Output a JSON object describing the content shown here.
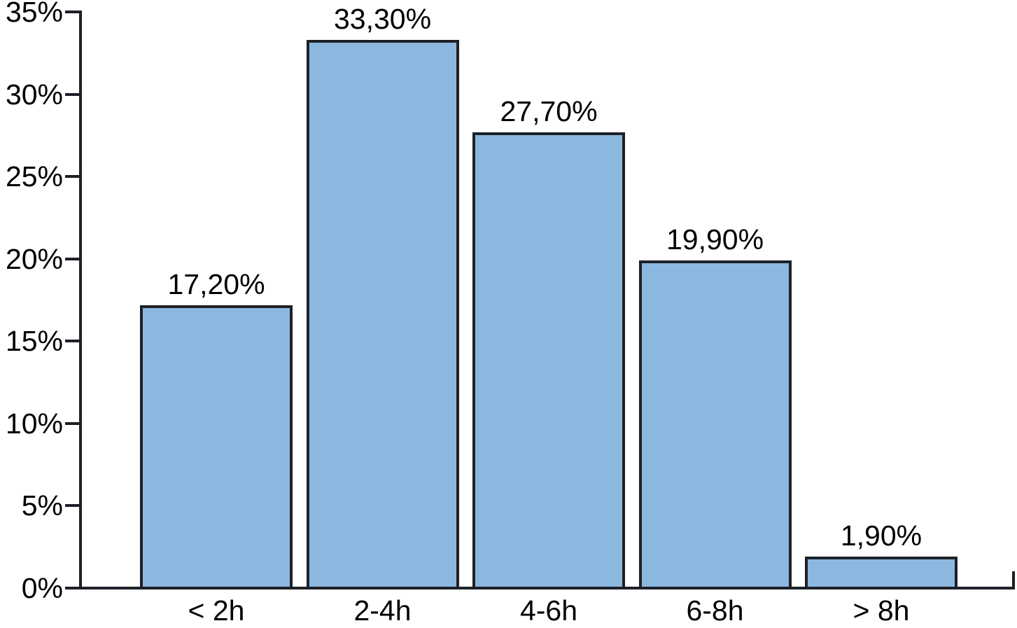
{
  "chart_data": {
    "type": "bar",
    "title": "",
    "xlabel": "",
    "ylabel": "",
    "categories": [
      "< 2h",
      "2-4h",
      "4-6h",
      "6-8h",
      "> 8h"
    ],
    "values": [
      17.2,
      33.3,
      27.7,
      19.9,
      1.9
    ],
    "value_labels": [
      "17,20%",
      "33,30%",
      "27,70%",
      "19,90%",
      "1,90%"
    ],
    "y_ticks": [
      {
        "value": 0,
        "label": "0%"
      },
      {
        "value": 5,
        "label": "5%"
      },
      {
        "value": 10,
        "label": "10%"
      },
      {
        "value": 15,
        "label": "15%"
      },
      {
        "value": 20,
        "label": "20%"
      },
      {
        "value": 25,
        "label": "25%"
      },
      {
        "value": 30,
        "label": "30%"
      },
      {
        "value": 35,
        "label": "35%"
      }
    ],
    "ylim": [
      0,
      35
    ],
    "grid": false,
    "legend": null,
    "decimal_separator": ",",
    "colors": {
      "bar_fill": "#8cb8df",
      "bar_border": "#1d2127",
      "axis": "#1d2127",
      "text": "#000000",
      "background": "#ffffff"
    }
  }
}
